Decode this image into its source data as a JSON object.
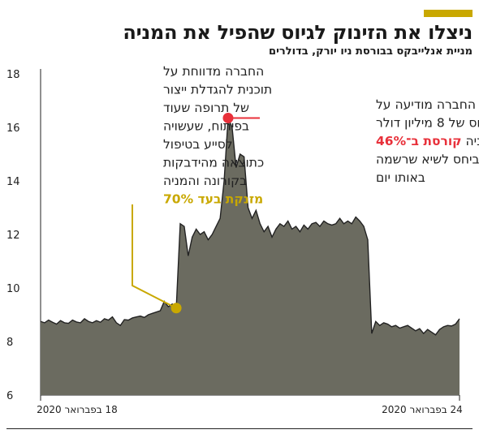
{
  "header": {
    "title": "ניצלו את הזינוק לגיוס שהפיל את המניה",
    "subtitle": "מניית אנלייבקס בבורסת ניו יורק, בדולרים"
  },
  "colors": {
    "accent": "#c9a800",
    "area_fill": "#6b6b60",
    "area_stroke": "#222222",
    "highlight_red": "#e8303a",
    "highlight_gold": "#c9a800"
  },
  "chart_data": {
    "type": "area",
    "title": "ניצלו את הזינוק לגיוס שהפיל את המניה",
    "subtitle": "מניית אנלייבקס בבורסת ניו יורק, בדולרים",
    "xlabel": "",
    "ylabel": "",
    "ylim": [
      6,
      18
    ],
    "yticks": [
      "6",
      "8",
      "10",
      "12",
      "14",
      "16",
      "18"
    ],
    "xtick_labels": [
      "18 בפברואר 2020",
      "24 בפברואר 2020"
    ],
    "grid": false,
    "values": [
      8.75,
      8.7,
      8.8,
      8.72,
      8.65,
      8.78,
      8.7,
      8.68,
      8.8,
      8.73,
      8.7,
      8.85,
      8.75,
      8.7,
      8.78,
      8.72,
      8.85,
      8.8,
      8.92,
      8.7,
      8.6,
      8.82,
      8.8,
      8.88,
      8.92,
      8.95,
      8.9,
      9.0,
      9.05,
      9.1,
      9.15,
      9.5,
      9.3,
      9.4,
      9.25,
      12.4,
      12.3,
      11.2,
      11.9,
      12.2,
      12.0,
      12.1,
      11.8,
      12.0,
      12.3,
      12.6,
      14.0,
      16.35,
      16.0,
      14.5,
      15.0,
      14.9,
      13.0,
      12.6,
      12.9,
      12.4,
      12.1,
      12.3,
      11.9,
      12.2,
      12.4,
      12.3,
      12.5,
      12.2,
      12.3,
      12.1,
      12.35,
      12.2,
      12.4,
      12.45,
      12.3,
      12.5,
      12.4,
      12.35,
      12.4,
      12.6,
      12.4,
      12.5,
      12.4,
      12.65,
      12.5,
      12.3,
      11.8,
      8.3,
      8.75,
      8.6,
      8.7,
      8.65,
      8.55,
      8.6,
      8.5,
      8.55,
      8.6,
      8.5,
      8.4,
      8.48,
      8.3,
      8.45,
      8.35,
      8.25,
      8.45,
      8.55,
      8.6,
      8.58,
      8.65,
      8.85
    ],
    "annotations": {
      "left": {
        "lines": [
          "החברה מדווחת על",
          "תוכנית להגדלת ייצור",
          "של תרופה שעוד",
          "בפיתוח, שעשויה",
          "לסייע בטיפול",
          "כתוצאה מהידבקות",
          "בקורונה והמניה"
        ],
        "highlight": "מזנקת בעד 70%",
        "point_value": 9.25
      },
      "right": {
        "lines": [
          "החברה מודיעה על",
          "גיוס של 8 מיליון דולר",
          "והמניה",
          "ביחס לשיא שרשמה",
          "באותו יום"
        ],
        "highlight": "קורסת ב־46%",
        "point_value": 16.35
      }
    }
  }
}
